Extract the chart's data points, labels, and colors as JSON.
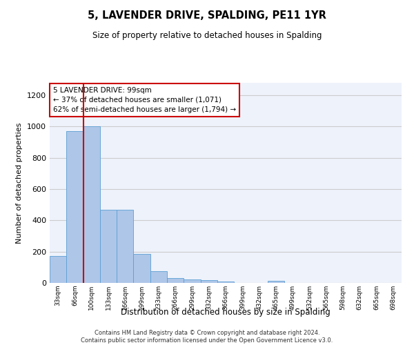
{
  "title": "5, LAVENDER DRIVE, SPALDING, PE11 1YR",
  "subtitle": "Size of property relative to detached houses in Spalding",
  "xlabel": "Distribution of detached houses by size in Spalding",
  "ylabel": "Number of detached properties",
  "categories": [
    "33sqm",
    "66sqm",
    "100sqm",
    "133sqm",
    "166sqm",
    "199sqm",
    "233sqm",
    "266sqm",
    "299sqm",
    "332sqm",
    "366sqm",
    "399sqm",
    "432sqm",
    "465sqm",
    "499sqm",
    "532sqm",
    "565sqm",
    "598sqm",
    "632sqm",
    "665sqm",
    "698sqm"
  ],
  "values": [
    170,
    970,
    1000,
    467,
    467,
    185,
    75,
    30,
    22,
    18,
    10,
    0,
    0,
    12,
    0,
    0,
    0,
    0,
    0,
    0,
    0
  ],
  "bar_color": "#aec6e8",
  "bar_edge_color": "#5a9fd4",
  "highlight_line_index": 2,
  "highlight_line_color": "#cc0000",
  "annotation_text": "5 LAVENDER DRIVE: 99sqm\n← 37% of detached houses are smaller (1,071)\n62% of semi-detached houses are larger (1,794) →",
  "annotation_box_color": "#cc0000",
  "ylim": [
    0,
    1280
  ],
  "yticks": [
    0,
    200,
    400,
    600,
    800,
    1000,
    1200
  ],
  "grid_color": "#cccccc",
  "bg_color": "#eef2fb",
  "footnote": "Contains HM Land Registry data © Crown copyright and database right 2024.\nContains public sector information licensed under the Open Government Licence v3.0."
}
